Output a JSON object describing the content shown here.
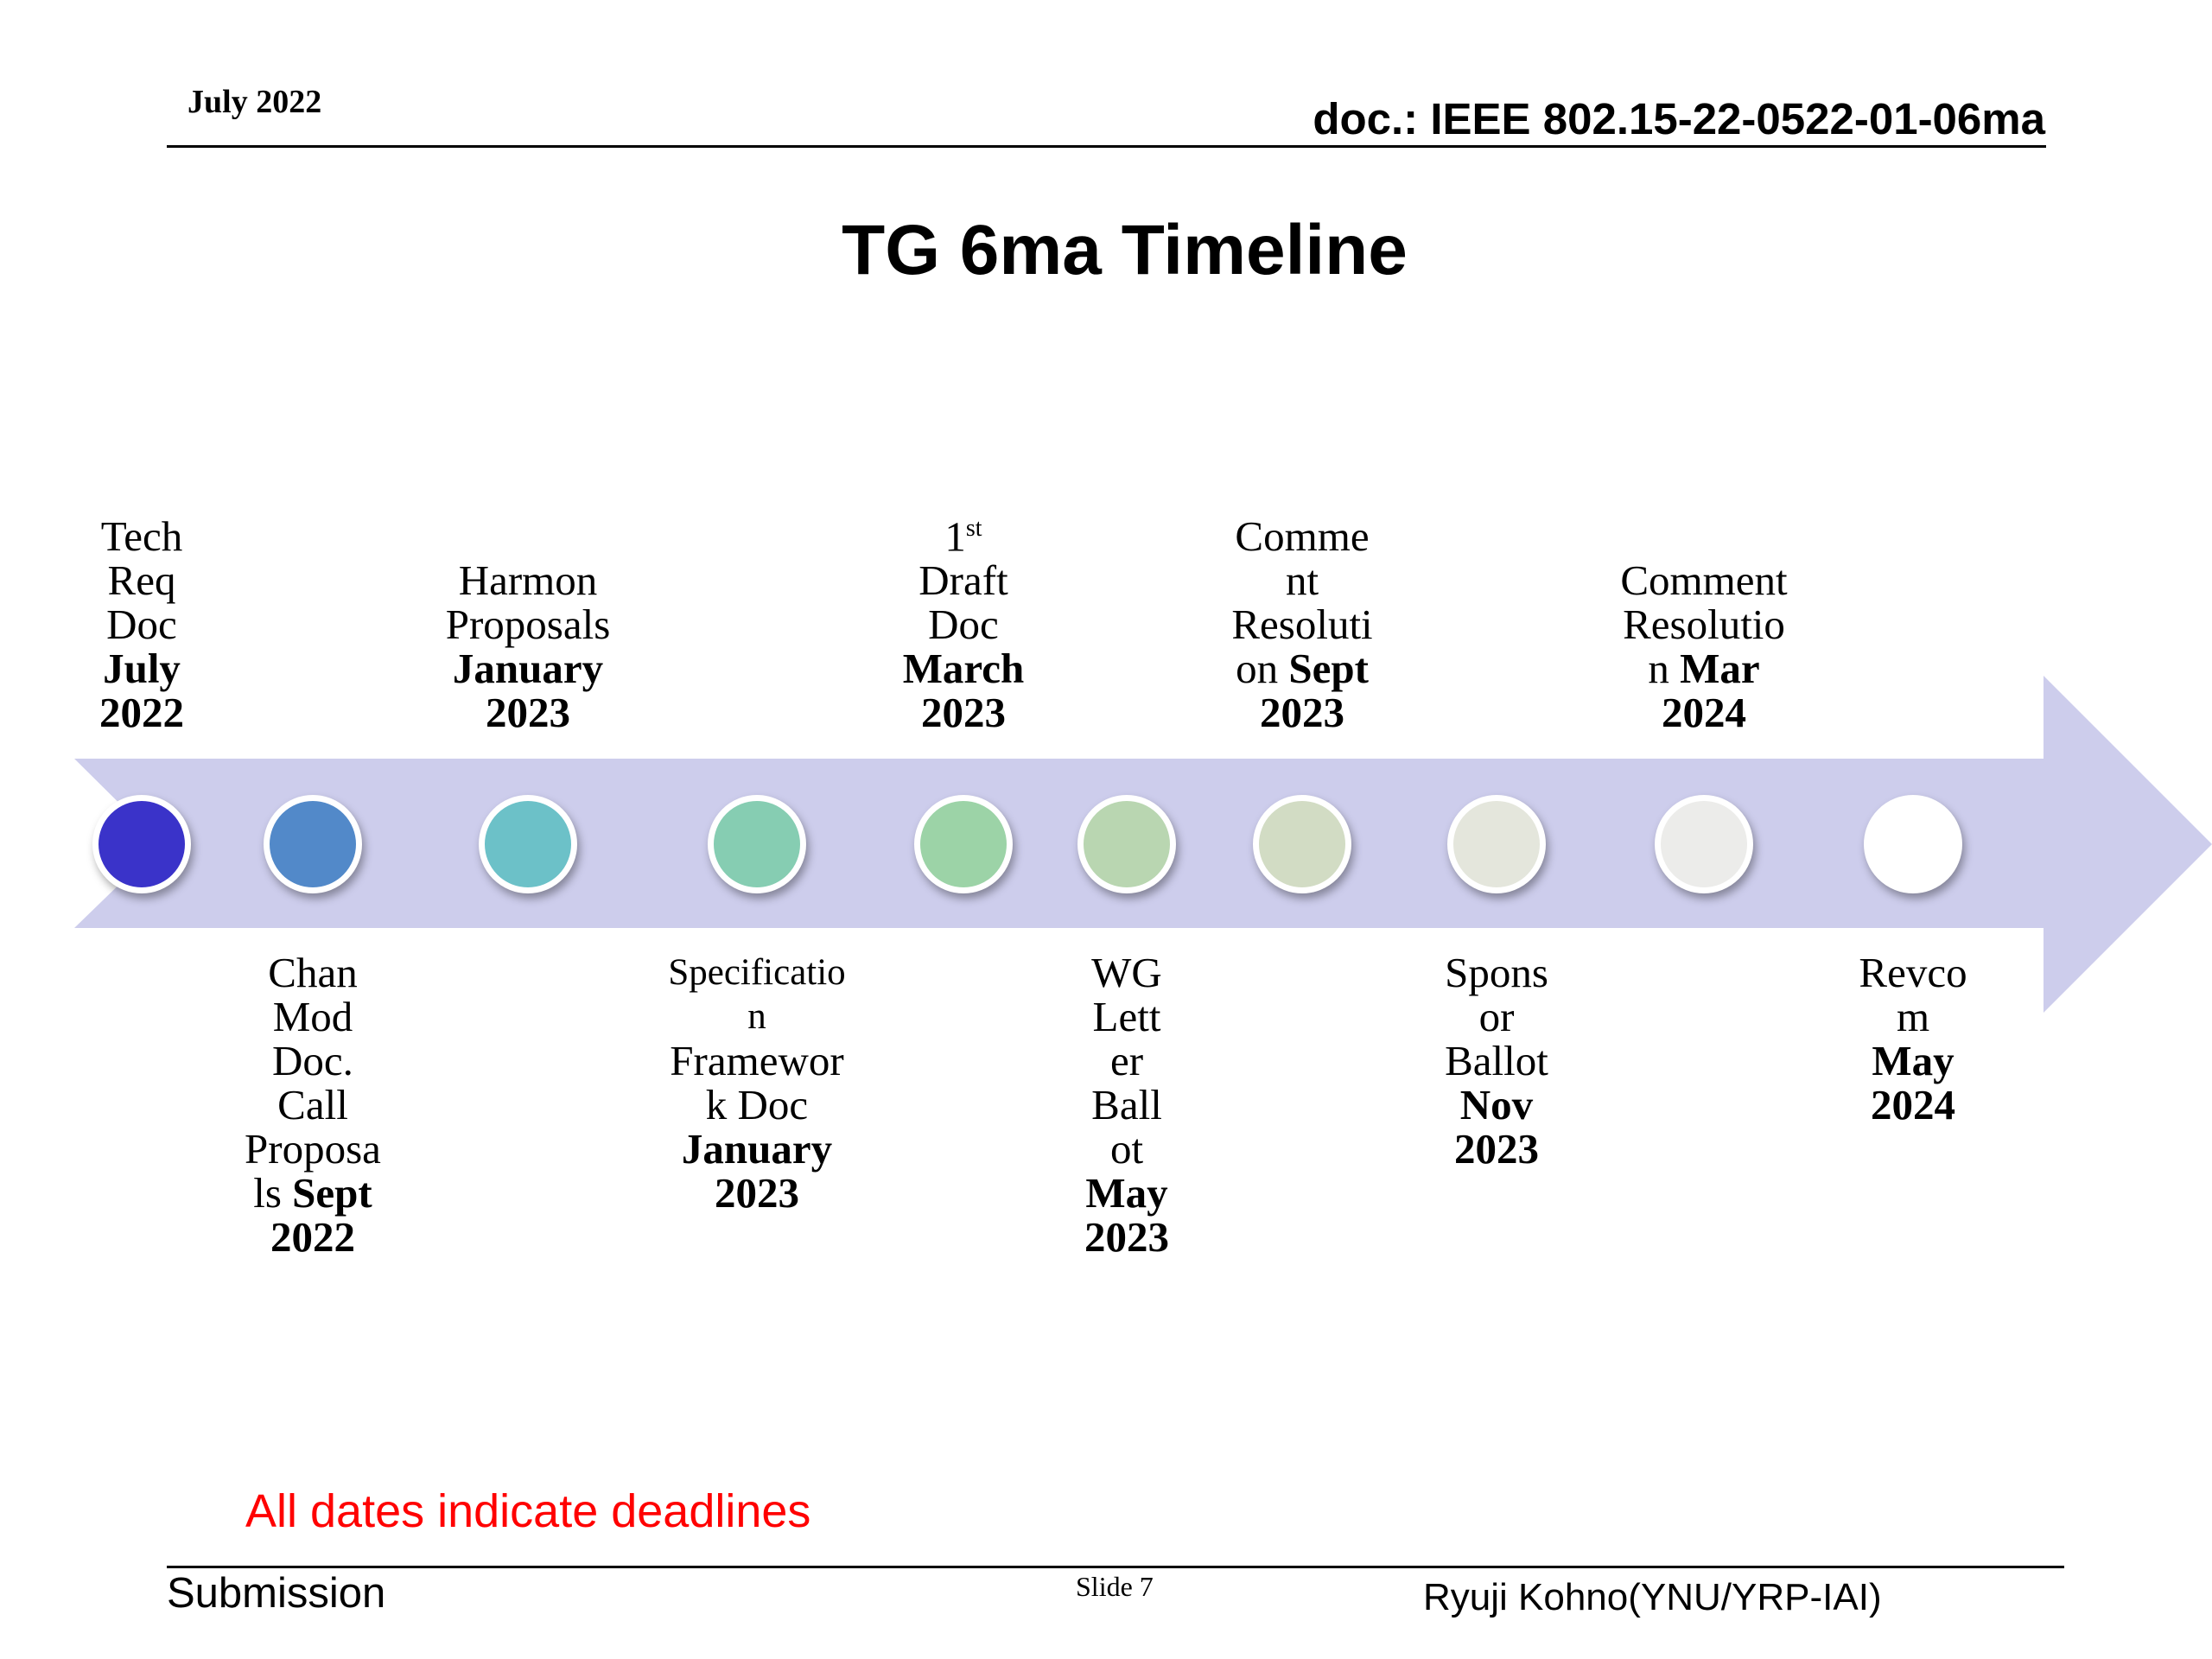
{
  "header": {
    "date": "July 2022",
    "doc_id": "doc.: IEEE 802.15-22-0522-01-06ma"
  },
  "title": "TG 6ma Timeline",
  "timeline": {
    "arrow_color": "#cdcdec",
    "milestones": [
      {
        "name": "Tech Req Doc",
        "date": "July 2022",
        "position": "above",
        "dot_color": "#3a33c9"
      },
      {
        "name": "Chan Mod Doc. Call Proposals",
        "date": "Sept 2022",
        "position": "below",
        "dot_color": "#5289c9"
      },
      {
        "name": "Harmon Proposals",
        "date": "January 2023",
        "position": "above",
        "dot_color": "#6cc1c8"
      },
      {
        "name": "Specification Framework Doc",
        "date": "January 2023",
        "position": "below",
        "dot_color": "#86cdb2"
      },
      {
        "name": "Draft Doc",
        "superscript": "st",
        "ordinal": "1",
        "date": "March 2023",
        "position": "above",
        "dot_color": "#9cd3a7"
      },
      {
        "name": "WG Letter Ballot",
        "date": "May 2023",
        "position": "below",
        "dot_color": "#b9d6b1"
      },
      {
        "name": "Comment Resolution on",
        "date": "Sept 2023",
        "position": "above",
        "dot_color": "#d2dcc4"
      },
      {
        "name": "Sponsor Ballot",
        "date": "Nov 2023",
        "position": "below",
        "dot_color": "#e4e6dc"
      },
      {
        "name": "Comment Resolution",
        "date": "Mar 2024",
        "position": "above",
        "dot_color": "#ececea"
      },
      {
        "name": "Revcom",
        "date": "May 2024",
        "position": "below",
        "dot_color": "#ffffff"
      }
    ],
    "labels": {
      "m1_name_lines": [
        "Tech",
        "Req",
        "Doc"
      ],
      "m1_date_lines": [
        "July",
        "2022"
      ],
      "m2_name_lines": [
        "Chan",
        "Mod",
        "Doc.",
        "Call",
        "Proposa"
      ],
      "m2_mixed_prefix": "ls ",
      "m2_mixed_bold": "Sept",
      "m2_date_lines": [
        "2022"
      ],
      "m3_name_lines": [
        "Harmon",
        "Proposals"
      ],
      "m3_date_lines": [
        "January",
        "2023"
      ],
      "m4_name_lines": [
        "Specificatio",
        "n",
        "Framewor",
        "k Doc"
      ],
      "m4_date_lines": [
        "January",
        "2023"
      ],
      "m5_ordinal": "1",
      "m5_sup": "st",
      "m5_name_lines": [
        "Draft",
        "Doc"
      ],
      "m5_date_lines": [
        "March",
        "2023"
      ],
      "m6_name_lines": [
        "WG",
        "Lett",
        "er",
        "Ball",
        "ot"
      ],
      "m6_date_lines": [
        "May",
        "2023"
      ],
      "m7_name_lines": [
        "Comme",
        "nt",
        "Resoluti"
      ],
      "m7_mixed_prefix": "on ",
      "m7_mixed_bold": "Sept",
      "m7_date_lines": [
        "2023"
      ],
      "m8_name_lines": [
        "Spons",
        "or",
        "Ballot"
      ],
      "m8_date_lines": [
        "Nov",
        "2023"
      ],
      "m9_name_lines": [
        "Comment",
        "Resolutio"
      ],
      "m9_mixed_prefix": "n ",
      "m9_mixed_bold": "Mar",
      "m9_date_lines": [
        "2024"
      ],
      "m10_name_lines": [
        "Revco",
        "m"
      ],
      "m10_date_lines": [
        "May",
        "2024"
      ]
    }
  },
  "note": "All dates indicate deadlines",
  "footer": {
    "left": "Submission",
    "center": "Slide 7",
    "right": "Ryuji Kohno(YNU/YRP-IAI)"
  }
}
